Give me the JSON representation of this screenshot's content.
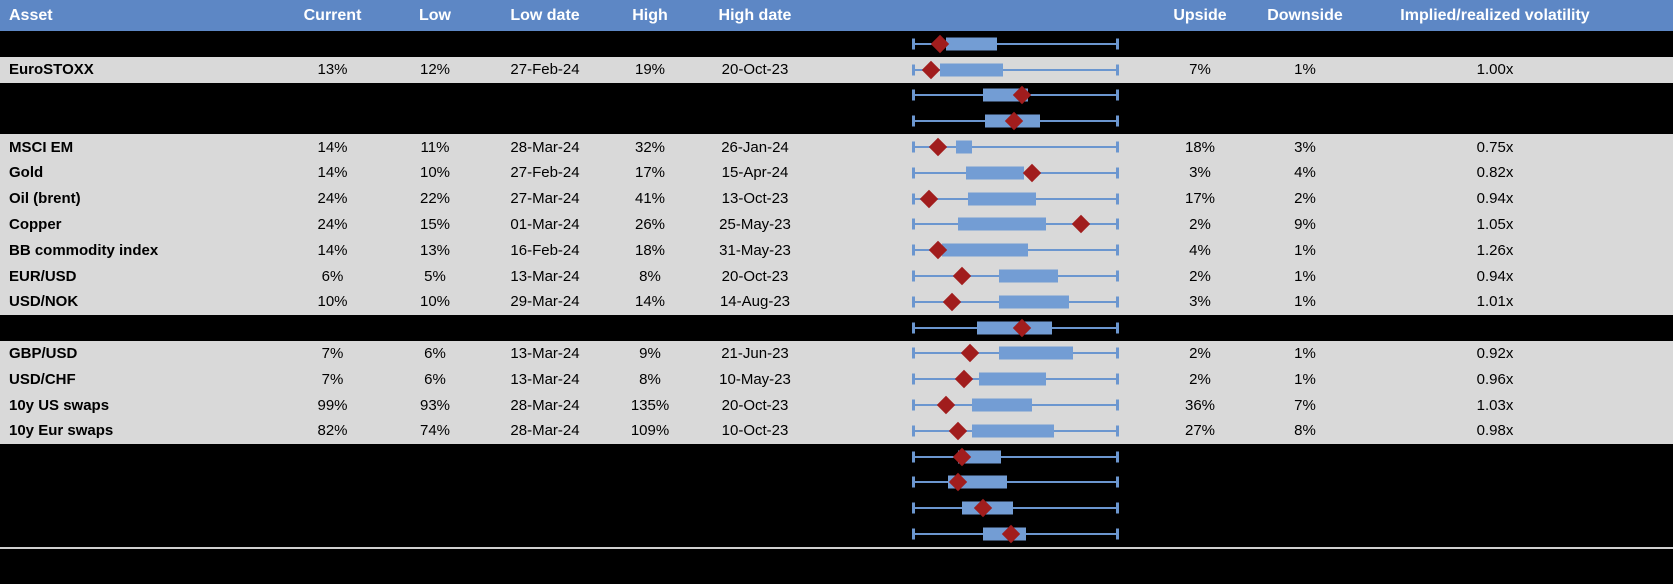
{
  "colors": {
    "header_bg": "#5d87c5",
    "header_text": "#ffffff",
    "row_bg": "#d9d9d9",
    "hidden_row_bg": "#000000",
    "whisker": "#6b96cf",
    "box": "#739dd4",
    "marker": "#a11d1d",
    "divider": "#cfcfcf"
  },
  "header": {
    "columns": [
      "Asset",
      "Current",
      "Low",
      "Low date",
      "High",
      "High date",
      "Upside",
      "Downside",
      "Implied/realized volatility"
    ]
  },
  "rows": [
    {
      "kind": "hidden",
      "plot": {
        "box": [
          0.16,
          0.41
        ],
        "marker": 0.13
      }
    },
    {
      "kind": "data",
      "asset": "EuroSTOXX",
      "current": "13%",
      "low": "12%",
      "low_date": "27-Feb-24",
      "high": "19%",
      "high_date": "20-Oct-23",
      "upside": "7%",
      "downside": "1%",
      "implied": "1.00x",
      "plot": {
        "box": [
          0.13,
          0.44
        ],
        "marker": 0.09
      }
    },
    {
      "kind": "hidden",
      "plot": {
        "box": [
          0.34,
          0.56
        ],
        "marker": 0.53
      }
    },
    {
      "kind": "hidden",
      "plot": {
        "box": [
          0.35,
          0.62
        ],
        "marker": 0.49
      }
    },
    {
      "kind": "data",
      "asset": "MSCI EM",
      "current": "14%",
      "low": "11%",
      "low_date": "28-Mar-24",
      "high": "32%",
      "high_date": "26-Jan-24",
      "upside": "18%",
      "downside": "3%",
      "implied": "0.75x",
      "plot": {
        "box": [
          0.21,
          0.29
        ],
        "marker": 0.12
      }
    },
    {
      "kind": "data",
      "asset": "Gold",
      "current": "14%",
      "low": "10%",
      "low_date": "27-Feb-24",
      "high": "17%",
      "high_date": "15-Apr-24",
      "upside": "3%",
      "downside": "4%",
      "implied": "0.82x",
      "plot": {
        "box": [
          0.26,
          0.54
        ],
        "marker": 0.58
      }
    },
    {
      "kind": "data",
      "asset": "Oil (brent)",
      "current": "24%",
      "low": "22%",
      "low_date": "27-Mar-24",
      "high": "41%",
      "high_date": "13-Oct-23",
      "upside": "17%",
      "downside": "2%",
      "implied": "0.94x",
      "plot": {
        "box": [
          0.27,
          0.6
        ],
        "marker": 0.08
      }
    },
    {
      "kind": "data",
      "asset": "Copper",
      "current": "24%",
      "low": "15%",
      "low_date": "01-Mar-24",
      "high": "26%",
      "high_date": "25-May-23",
      "upside": "2%",
      "downside": "9%",
      "implied": "1.05x",
      "plot": {
        "box": [
          0.22,
          0.65
        ],
        "marker": 0.82
      }
    },
    {
      "kind": "data",
      "asset": "BB commodity index",
      "current": "14%",
      "low": "13%",
      "low_date": "16-Feb-24",
      "high": "18%",
      "high_date": "31-May-23",
      "upside": "4%",
      "downside": "1%",
      "implied": "1.26x",
      "plot": {
        "box": [
          0.14,
          0.56
        ],
        "marker": 0.12
      }
    },
    {
      "kind": "data",
      "asset": "EUR/USD",
      "current": "6%",
      "low": "5%",
      "low_date": "13-Mar-24",
      "high": "8%",
      "high_date": "20-Oct-23",
      "upside": "2%",
      "downside": "1%",
      "implied": "0.94x",
      "plot": {
        "box": [
          0.42,
          0.71
        ],
        "marker": 0.24
      }
    },
    {
      "kind": "data",
      "asset": "USD/NOK",
      "current": "10%",
      "low": "10%",
      "low_date": "29-Mar-24",
      "high": "14%",
      "high_date": "14-Aug-23",
      "upside": "3%",
      "downside": "1%",
      "implied": "1.01x",
      "plot": {
        "box": [
          0.42,
          0.76
        ],
        "marker": 0.19
      }
    },
    {
      "kind": "hidden",
      "plot": {
        "box": [
          0.31,
          0.68
        ],
        "marker": 0.53
      }
    },
    {
      "kind": "data",
      "asset": "GBP/USD",
      "current": "7%",
      "low": "6%",
      "low_date": "13-Mar-24",
      "high": "9%",
      "high_date": "21-Jun-23",
      "upside": "2%",
      "downside": "1%",
      "implied": "0.92x",
      "plot": {
        "box": [
          0.42,
          0.78
        ],
        "marker": 0.28
      }
    },
    {
      "kind": "data",
      "asset": "USD/CHF",
      "current": "7%",
      "low": "6%",
      "low_date": "13-Mar-24",
      "high": "8%",
      "high_date": "10-May-23",
      "upside": "2%",
      "downside": "1%",
      "implied": "0.96x",
      "plot": {
        "box": [
          0.32,
          0.65
        ],
        "marker": 0.25
      }
    },
    {
      "kind": "data",
      "asset": "10y US swaps",
      "current": "99%",
      "low": "93%",
      "low_date": "28-Mar-24",
      "high": "135%",
      "high_date": "20-Oct-23",
      "upside": "36%",
      "downside": "7%",
      "implied": "1.03x",
      "plot": {
        "box": [
          0.29,
          0.58
        ],
        "marker": 0.16
      }
    },
    {
      "kind": "data",
      "asset": "10y Eur swaps",
      "current": "82%",
      "low": "74%",
      "low_date": "28-Mar-24",
      "high": "109%",
      "high_date": "10-Oct-23",
      "upside": "27%",
      "downside": "8%",
      "implied": "0.98x",
      "plot": {
        "box": [
          0.29,
          0.69
        ],
        "marker": 0.22
      }
    },
    {
      "kind": "hidden",
      "plot": {
        "box": [
          0.22,
          0.43
        ],
        "marker": 0.24
      }
    },
    {
      "kind": "hidden",
      "plot": {
        "box": [
          0.17,
          0.46
        ],
        "marker": 0.22
      }
    },
    {
      "kind": "hidden",
      "plot": {
        "box": [
          0.24,
          0.49
        ],
        "marker": 0.34
      }
    },
    {
      "kind": "hidden",
      "plot": {
        "box": [
          0.34,
          0.55
        ],
        "marker": 0.48
      }
    }
  ]
}
